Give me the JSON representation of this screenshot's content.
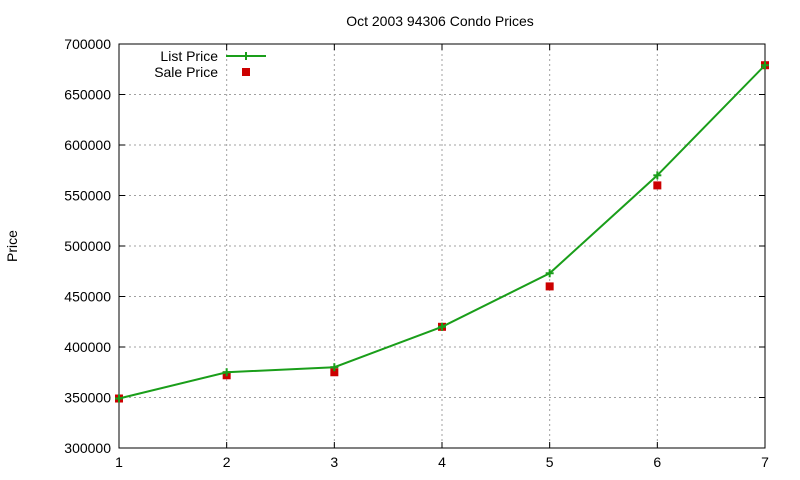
{
  "chart_data": {
    "type": "line",
    "title": "Oct 2003 94306 Condo Prices",
    "xlabel": "",
    "ylabel": "Price",
    "xlim": [
      1,
      7
    ],
    "ylim": [
      300000,
      700000
    ],
    "x_ticks": [
      1,
      2,
      3,
      4,
      5,
      6,
      7
    ],
    "y_ticks": [
      300000,
      350000,
      400000,
      450000,
      500000,
      550000,
      600000,
      650000,
      700000
    ],
    "grid": true,
    "legend_position": "top-left",
    "series": [
      {
        "name": "List Price",
        "style": "lines+points",
        "marker": "plus",
        "color": "#1a9e1a",
        "x": [
          1,
          2,
          3,
          4,
          5,
          6,
          7
        ],
        "values": [
          349000,
          375000,
          380000,
          420000,
          473000,
          570000,
          679000
        ]
      },
      {
        "name": "Sale Price",
        "style": "points",
        "marker": "square",
        "color": "#cc0000",
        "x": [
          1,
          2,
          3,
          4,
          5,
          6,
          7
        ],
        "values": [
          349000,
          372000,
          375000,
          420000,
          460000,
          560000,
          679000
        ]
      }
    ]
  }
}
